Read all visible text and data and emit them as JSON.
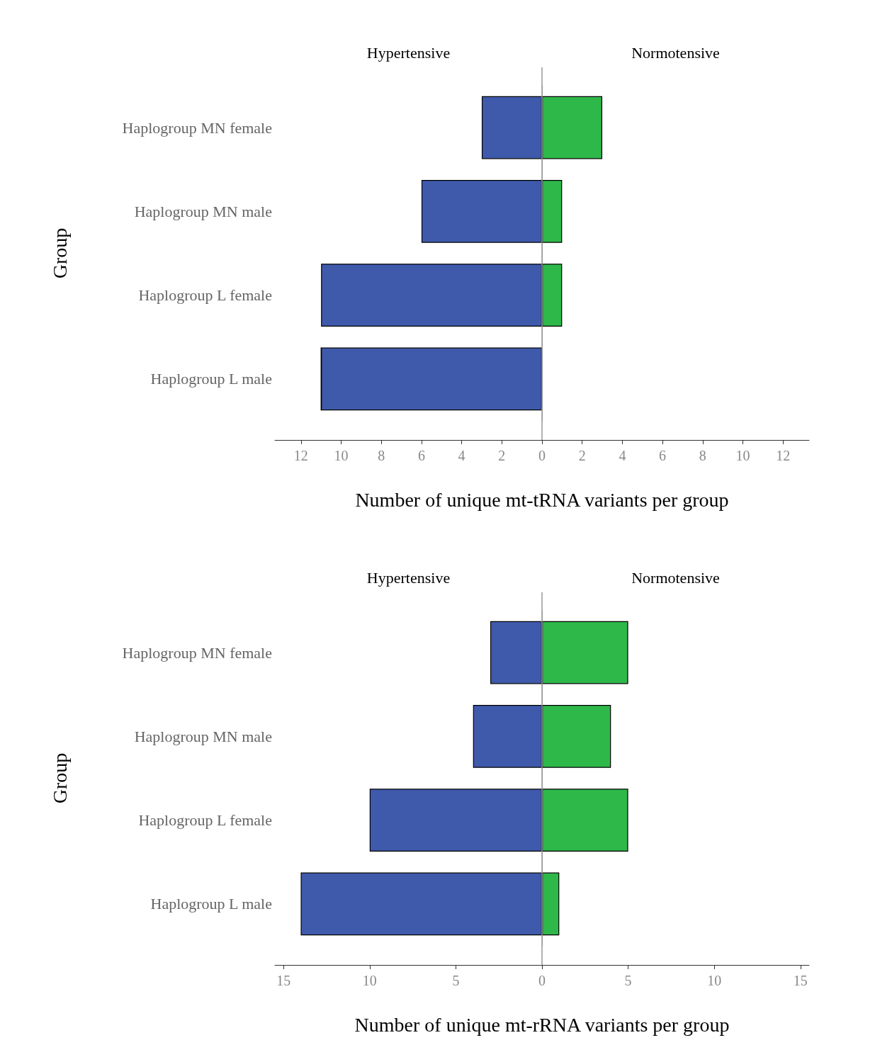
{
  "chart_data": [
    {
      "type": "bar",
      "orientation": "horizontal",
      "stacked": true,
      "xlabel": "Number of unique mt-tRNA variants per group",
      "ylabel": "Group",
      "categories": [
        "Haplogroup MN female",
        "Haplogroup MN male",
        "Haplogroup L female",
        "Haplogroup L male"
      ],
      "series": [
        {
          "name": "Hypertensive",
          "color": "#3f5aab",
          "values": [
            -3,
            -6,
            -11,
            -11
          ]
        },
        {
          "name": "Normotensive",
          "color": "#2eb84a",
          "values": [
            3,
            1,
            1,
            0
          ]
        }
      ],
      "xlim": [
        -13.3,
        13.3
      ],
      "xticks": [
        {
          "value": -12,
          "label": "12"
        },
        {
          "value": -10,
          "label": "10"
        },
        {
          "value": -8,
          "label": "8"
        },
        {
          "value": -6,
          "label": "6"
        },
        {
          "value": -4,
          "label": "4"
        },
        {
          "value": -2,
          "label": "2"
        },
        0,
        2,
        4,
        6,
        8,
        10,
        12
      ],
      "ref_lines": [
        {
          "axis": "x",
          "value": 0,
          "color": "#999999"
        }
      ],
      "grid": false
    },
    {
      "type": "bar",
      "orientation": "horizontal",
      "stacked": true,
      "xlabel": "Number of unique mt-rRNA variants per group",
      "ylabel": "Group",
      "categories": [
        "Haplogroup MN female",
        "Haplogroup MN male",
        "Haplogroup L female",
        "Haplogroup L male"
      ],
      "series": [
        {
          "name": "Hypertensive",
          "color": "#3f5aab",
          "values": [
            -3,
            -4,
            -10,
            -14
          ]
        },
        {
          "name": "Normotensive",
          "color": "#2eb84a",
          "values": [
            5,
            4,
            5,
            1
          ]
        }
      ],
      "xlim": [
        -15.5,
        15.5
      ],
      "xticks": [
        {
          "value": -15,
          "label": "15"
        },
        {
          "value": -10,
          "label": "10"
        },
        {
          "value": -5,
          "label": "5"
        },
        0,
        5,
        10,
        15
      ],
      "ref_lines": [
        {
          "axis": "x",
          "value": 0,
          "color": "#999999"
        }
      ],
      "grid": false
    }
  ]
}
